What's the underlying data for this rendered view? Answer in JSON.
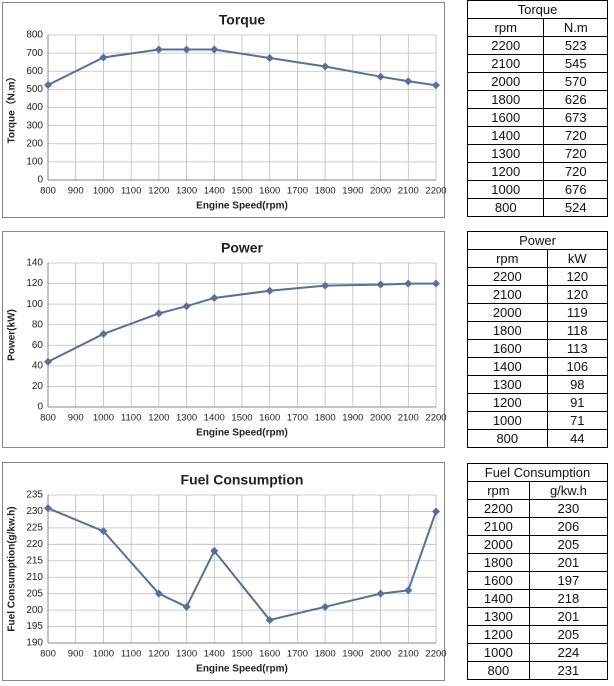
{
  "chart_data": [
    {
      "type": "line",
      "title": "Torque",
      "x_label": "Engine Speed(rpm)",
      "y_label": "Torque（N.m）",
      "x": [
        800,
        1000,
        1200,
        1300,
        1400,
        1600,
        1800,
        2000,
        2100,
        2200
      ],
      "series": [
        {
          "color": "#5b6f96",
          "values": [
            524,
            676,
            720,
            720,
            720,
            673,
            626,
            570,
            545,
            523
          ]
        }
      ],
      "xlim": [
        800,
        2200
      ],
      "xticks": [
        800,
        900,
        1000,
        1100,
        1200,
        1300,
        1400,
        1500,
        1600,
        1700,
        1800,
        1900,
        2000,
        2100,
        2200
      ],
      "ylim": [
        0,
        800
      ],
      "yticks": [
        0,
        100,
        200,
        300,
        400,
        500,
        600,
        700,
        800
      ],
      "grid": true
    },
    {
      "type": "line",
      "title": "Power",
      "x_label": "Engine Speed(rpm)",
      "y_label": "Power(kW)",
      "x": [
        800,
        1000,
        1200,
        1300,
        1400,
        1600,
        1800,
        2000,
        2100,
        2200
      ],
      "series": [
        {
          "color": "#5b6f96",
          "values": [
            44,
            71,
            91,
            98,
            106,
            113,
            118,
            119,
            120,
            120
          ]
        }
      ],
      "xlim": [
        800,
        2200
      ],
      "xticks": [
        800,
        900,
        1000,
        1100,
        1200,
        1300,
        1400,
        1500,
        1600,
        1700,
        1800,
        1900,
        2000,
        2100,
        2200
      ],
      "ylim": [
        0,
        140
      ],
      "yticks": [
        0,
        20,
        40,
        60,
        80,
        100,
        120,
        140
      ],
      "grid": true
    },
    {
      "type": "line",
      "title": "Fuel Consumption",
      "x_label": "Engine Speed(rpm)",
      "y_label": "Fuel Consumption(g/kw.h)",
      "x": [
        800,
        1000,
        1200,
        1300,
        1400,
        1600,
        1800,
        2000,
        2100,
        2200
      ],
      "series": [
        {
          "color": "#5b6f96",
          "values": [
            231,
            224,
            205,
            201,
            218,
            197,
            201,
            205,
            206,
            230
          ]
        }
      ],
      "xlim": [
        800,
        2200
      ],
      "xticks": [
        800,
        900,
        1000,
        1100,
        1200,
        1300,
        1400,
        1500,
        1600,
        1700,
        1800,
        1900,
        2000,
        2100,
        2200
      ],
      "ylim": [
        190,
        235
      ],
      "yticks": [
        190,
        195,
        200,
        205,
        210,
        215,
        220,
        225,
        230,
        235
      ],
      "grid": true
    }
  ],
  "tables": [
    {
      "title": "Torque",
      "header": [
        "rpm",
        "N.m"
      ],
      "rows": [
        [
          2200,
          523
        ],
        [
          2100,
          545
        ],
        [
          2000,
          570
        ],
        [
          1800,
          626
        ],
        [
          1600,
          673
        ],
        [
          1400,
          720
        ],
        [
          1300,
          720
        ],
        [
          1200,
          720
        ],
        [
          1000,
          676
        ],
        [
          800,
          524
        ]
      ]
    },
    {
      "title": "Power",
      "header": [
        "rpm",
        "kW"
      ],
      "rows": [
        [
          2200,
          120
        ],
        [
          2100,
          120
        ],
        [
          2000,
          119
        ],
        [
          1800,
          118
        ],
        [
          1600,
          113
        ],
        [
          1400,
          106
        ],
        [
          1300,
          98
        ],
        [
          1200,
          91
        ],
        [
          1000,
          71
        ],
        [
          800,
          44
        ]
      ]
    },
    {
      "title": "Fuel Consumption",
      "header": [
        "rpm",
        "g/kw.h"
      ],
      "rows": [
        [
          2200,
          230
        ],
        [
          2100,
          206
        ],
        [
          2000,
          205
        ],
        [
          1800,
          201
        ],
        [
          1600,
          197
        ],
        [
          1400,
          218
        ],
        [
          1300,
          201
        ],
        [
          1200,
          205
        ],
        [
          1000,
          224
        ],
        [
          800,
          231
        ]
      ]
    }
  ]
}
